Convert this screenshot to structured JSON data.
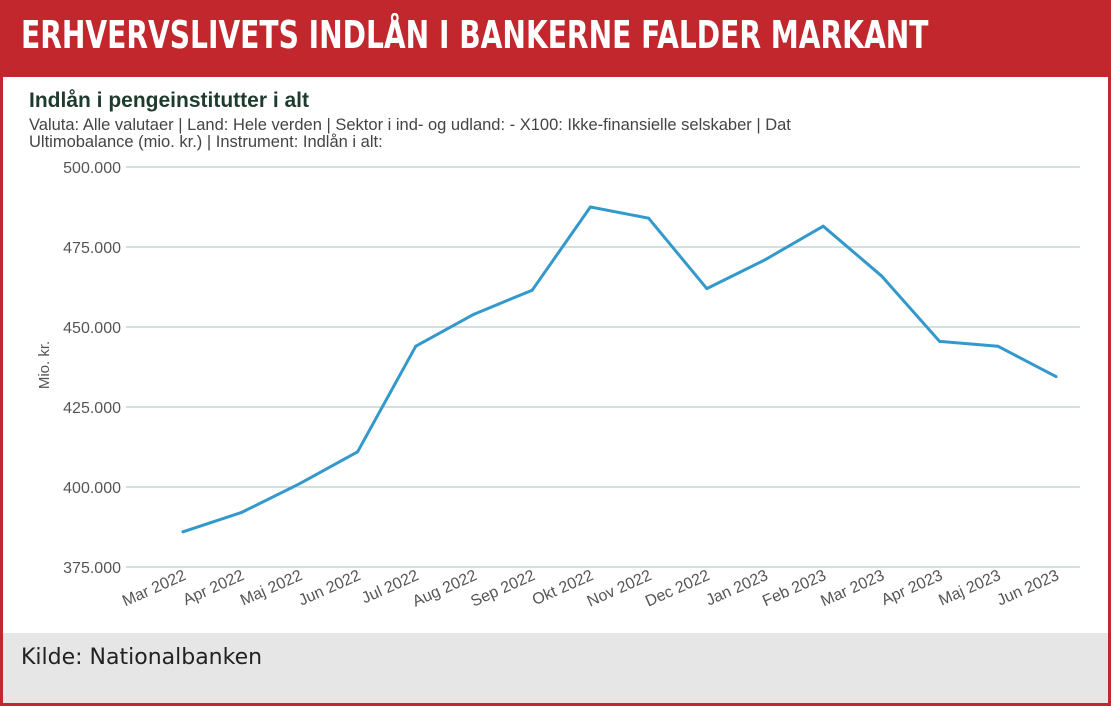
{
  "header": {
    "title": "ERHVERVSLIVETS INDLÅN I BANKERNE FALDER MARKANT"
  },
  "footer": {
    "source": "Kilde: Nationalbanken"
  },
  "colors": {
    "header_bg": "#c1272d",
    "line": "#3399cc",
    "grid": "#b9cdd2",
    "footer_bg": "#e6e6e6"
  },
  "chart_data": {
    "type": "line",
    "title": "Indlån i pengeinstitutter i alt",
    "subtitle_lines": [
      "Valuta: Alle valutaer | Land: Hele verden | Sektor i ind- og udland: - X100: Ikke-finansielle selskaber | Dat",
      "Ultimobalance (mio. kr.) | Instrument: Indlån i alt:"
    ],
    "ylabel": "Mio. kr.",
    "xlabel": "",
    "ylim": [
      375000,
      500000
    ],
    "yticks": [
      375000,
      400000,
      425000,
      450000,
      475000,
      500000
    ],
    "ytick_labels": [
      "375.000",
      "400.000",
      "425.000",
      "450.000",
      "475.000",
      "500.000"
    ],
    "grid": true,
    "legend": "none",
    "categories": [
      "Mar 2022",
      "Apr 2022",
      "Maj 2022",
      "Jun 2022",
      "Jul 2022",
      "Aug 2022",
      "Sep 2022",
      "Okt 2022",
      "Nov 2022",
      "Dec 2022",
      "Jan 2023",
      "Feb 2023",
      "Mar 2023",
      "Apr 2023",
      "Maj 2023",
      "Jun 2023"
    ],
    "series": [
      {
        "values": [
          386000,
          392000,
          401000,
          411000,
          444000,
          454000,
          461500,
          487500,
          484000,
          462000,
          471000,
          481500,
          466000,
          445500,
          444000,
          434500
        ]
      }
    ]
  }
}
